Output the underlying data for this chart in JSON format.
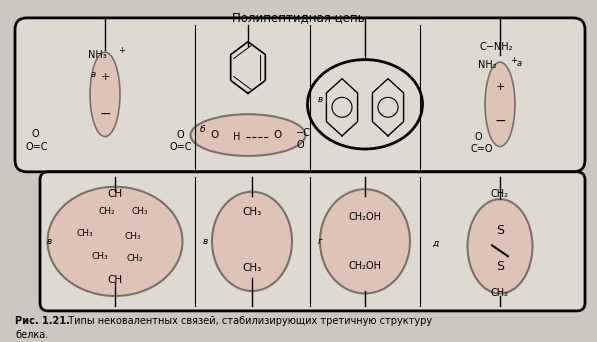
{
  "bg_color": "#ccc8c0",
  "paper_color": "#dedad2",
  "title": "Полипептидная цепь",
  "caption_bold": "Рис. 1.21.",
  "caption_text": "  Типы нековалентных связей, стабилизирующих третичную структуру",
  "caption_line2": "белка.",
  "highlight_color": "#e0a898",
  "highlight_alpha": 0.45
}
